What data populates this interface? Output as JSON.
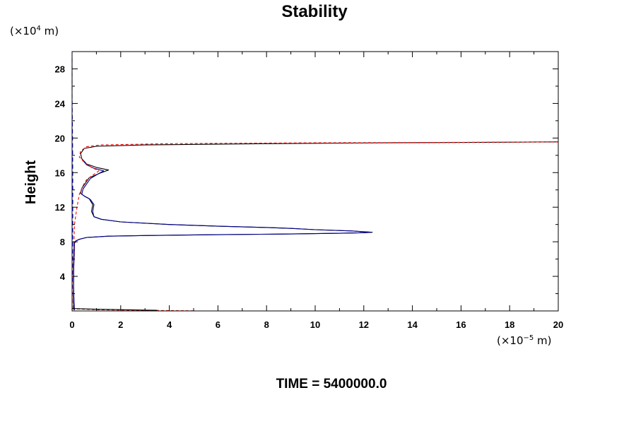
{
  "chart_data": {
    "type": "line",
    "title": "Stability",
    "ylabel": "Height",
    "y_unit": {
      "base": "(×10",
      "exp": "4",
      "suffix": " m)"
    },
    "x_unit": {
      "base": "(×10",
      "exp": "−5",
      "suffix": " m)"
    },
    "xlim": [
      0,
      20
    ],
    "ylim": [
      0,
      30
    ],
    "x_ticks": [
      0,
      2,
      4,
      6,
      8,
      10,
      12,
      14,
      16,
      18,
      20
    ],
    "y_ticks": [
      4,
      8,
      12,
      16,
      20,
      24,
      28
    ],
    "grid": false,
    "footer": "TIME = 5400000.0",
    "series": [
      {
        "color": "#000000",
        "dash": "solid",
        "x": [
          0.08,
          0.06,
          0.06,
          0.06,
          0.07,
          0.08,
          0.15,
          0.3,
          0.6,
          1.5,
          3.0,
          6.0,
          9.0,
          11.0,
          12.0,
          12.35,
          11.5,
          10.0,
          9.0,
          8.0,
          6.0,
          4.0,
          2.0,
          1.2,
          0.9,
          0.8,
          0.85,
          0.7,
          0.5,
          0.35,
          0.4,
          0.7,
          1.2,
          1.5,
          1.0,
          0.6,
          0.4,
          0.35,
          0.5,
          1.0,
          3.0,
          8.0,
          13.0,
          17.0,
          20.0
        ],
        "y": [
          0.1,
          1.0,
          3.0,
          5.0,
          6.5,
          7.8,
          8.1,
          8.3,
          8.5,
          8.65,
          8.72,
          8.82,
          8.9,
          8.98,
          9.05,
          9.1,
          9.25,
          9.4,
          9.55,
          9.65,
          9.8,
          10.0,
          10.3,
          10.6,
          10.9,
          11.5,
          12.3,
          13.0,
          13.3,
          13.6,
          14.2,
          15.4,
          16.0,
          16.3,
          16.6,
          17.0,
          17.6,
          18.2,
          18.8,
          19.05,
          19.2,
          19.35,
          19.45,
          19.5,
          19.55
        ]
      },
      {
        "color": "#00008b",
        "dash": "solid",
        "x": [
          0.1,
          0.08,
          0.06,
          0.07,
          0.09,
          0.1,
          0.16,
          0.32,
          0.62,
          1.5,
          3.0,
          6.0,
          9.0,
          11.0,
          12.0,
          12.3,
          11.5,
          10.0,
          9.0,
          8.0,
          6.0,
          4.0,
          2.0,
          1.2,
          0.9,
          0.85,
          0.9,
          0.75,
          0.55,
          0.4,
          0.45,
          0.75,
          1.1,
          1.3,
          0.9,
          0.6,
          0.45
        ],
        "y": [
          0.1,
          1.0,
          3.0,
          5.0,
          6.5,
          7.8,
          8.1,
          8.3,
          8.5,
          8.65,
          8.72,
          8.82,
          8.9,
          8.98,
          9.05,
          9.1,
          9.25,
          9.4,
          9.55,
          9.65,
          9.8,
          10.0,
          10.3,
          10.6,
          10.9,
          11.5,
          12.3,
          12.9,
          13.2,
          13.5,
          14.1,
          15.3,
          15.9,
          16.2,
          16.5,
          16.9,
          17.4
        ]
      },
      {
        "color": "#0000ff",
        "dash": "6,4",
        "x": [
          0.0,
          0.02,
          0.03,
          0.03,
          0.02,
          0.0,
          0.0
        ],
        "y": [
          0.1,
          5.0,
          10.0,
          15.0,
          20.0,
          25.0,
          29.5
        ]
      },
      {
        "color": "#ff0000",
        "dash": "4,3",
        "x": [
          0.05,
          0.05,
          0.1,
          0.2,
          0.3,
          0.45,
          0.6,
          0.9,
          1.1,
          0.8,
          0.5,
          0.3,
          0.35,
          0.6,
          1.2,
          4.0,
          10.0,
          16.0,
          20.0
        ],
        "y": [
          0.3,
          5.0,
          10.0,
          12.0,
          13.5,
          14.5,
          15.2,
          15.8,
          16.2,
          16.6,
          17.2,
          17.8,
          18.5,
          19.0,
          19.2,
          19.35,
          19.45,
          19.5,
          19.55
        ]
      },
      {
        "color": "#ff0000",
        "dash": "4,3",
        "x": [
          0.0,
          0.5,
          1.0,
          2.0,
          3.0,
          4.0,
          5.0
        ],
        "y": [
          0.25,
          0.2,
          0.15,
          0.1,
          0.07,
          0.04,
          0.02
        ]
      },
      {
        "color": "#000000",
        "dash": "solid",
        "x": [
          0.0,
          0.5,
          1.0,
          2.0,
          3.0,
          3.5
        ],
        "y": [
          0.28,
          0.24,
          0.2,
          0.15,
          0.1,
          0.08
        ]
      }
    ]
  }
}
